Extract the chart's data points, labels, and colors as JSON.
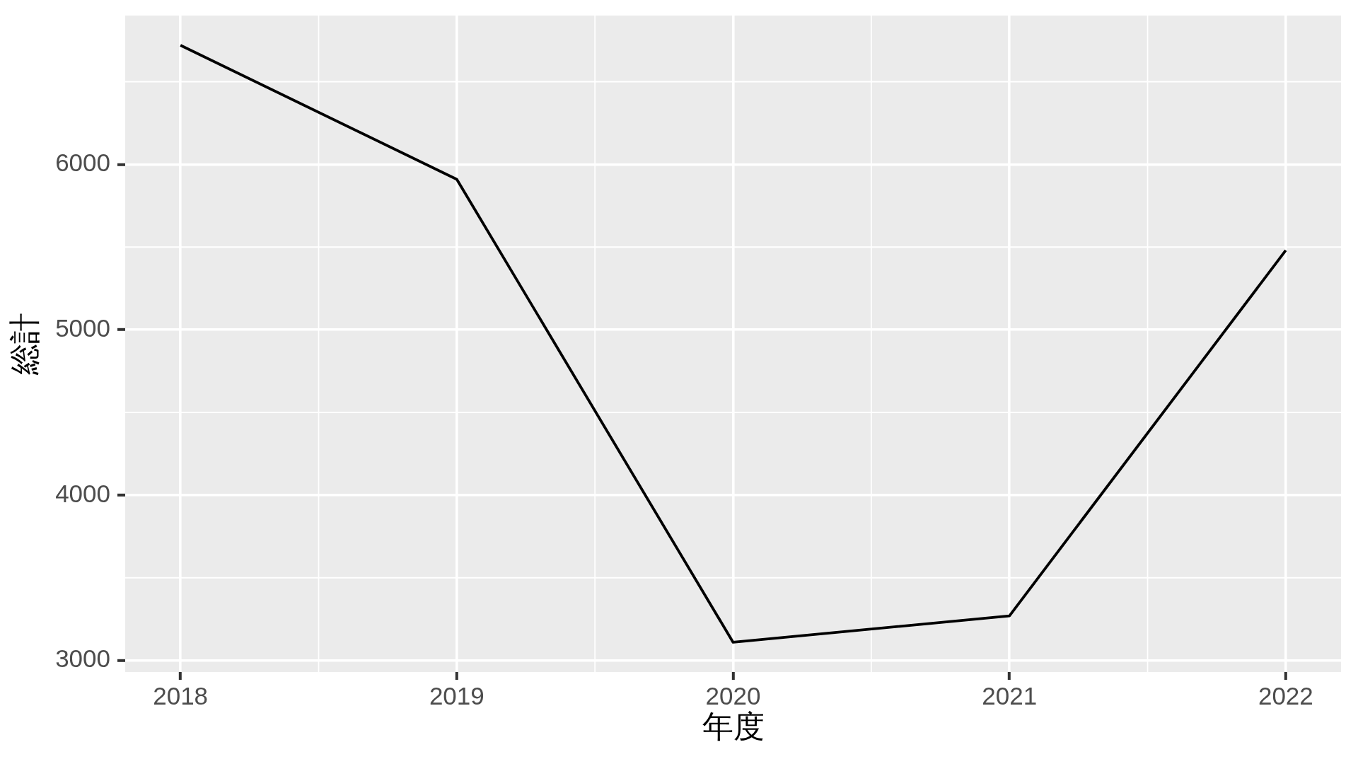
{
  "chart_data": {
    "type": "line",
    "xlabel": "年度",
    "ylabel": "総計",
    "x": [
      2018,
      2019,
      2020,
      2021,
      2022
    ],
    "series": [
      {
        "color": "#000000",
        "values": [
          6720,
          5910,
          3110,
          3270,
          5480
        ]
      }
    ],
    "xlim": [
      2017.8,
      2022.2
    ],
    "xticks": [
      2018,
      2019,
      2020,
      2021,
      2022
    ],
    "ylim": [
      2930,
      6900
    ],
    "yticks": [
      3000,
      4000,
      5000,
      6000
    ],
    "grid": true,
    "legend": false,
    "marker": "none",
    "line_style": "solid"
  }
}
